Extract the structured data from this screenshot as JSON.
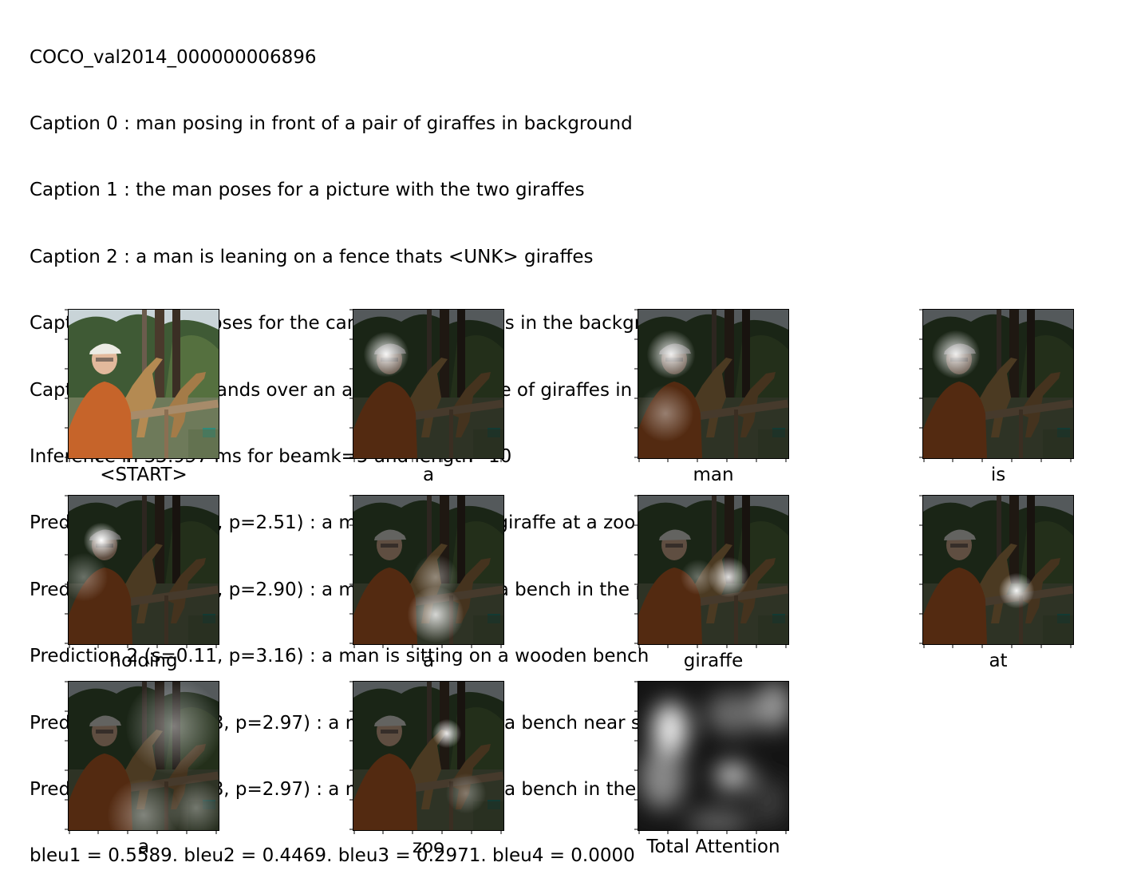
{
  "header": {
    "image_id": "COCO_val2014_000000006896",
    "captions": [
      "Caption 0 : man posing in front of a pair of giraffes in background",
      "Caption 1 : the man poses for a picture with the two giraffes",
      "Caption 2 : a man is leaning on a fence thats <UNK> giraffes",
      "Caption 3 : a man poses for the camera with giraffes in the background",
      "Caption 4 : a man stands over an area with a couple of giraffes in it"
    ],
    "inference": "Inference in 35.997 ms for beamk=5 and length=10",
    "predictions": [
      "Prediction 0 (s=1.85, p=2.51) : a man is holding a giraffe at a zoo",
      "Prediction 1 (s=0.16, p=2.90) : a man is sitting on a bench in the park",
      "Prediction 2 (s=0.11, p=3.16) : a man is sitting on a wooden bench",
      "Prediction 3 (s=-0.08, p=2.97) : a man is sitting on a bench near some trees",
      "Prediction 4 (s=-0.08, p=2.97) : a man is sitting on a bench in the woods"
    ],
    "bleu": "bleu1 = 0.5589. bleu2 = 0.4469. bleu3 = 0.2971. bleu4 = 0.0000"
  },
  "panels": [
    {
      "label": "<START>"
    },
    {
      "label": "a"
    },
    {
      "label": "man"
    },
    {
      "label": "is"
    },
    {
      "label": "holding"
    },
    {
      "label": "a"
    },
    {
      "label": "giraffe"
    },
    {
      "label": "at"
    },
    {
      "label": "a"
    },
    {
      "label": "zoo"
    },
    {
      "label": "Total Attention"
    }
  ]
}
